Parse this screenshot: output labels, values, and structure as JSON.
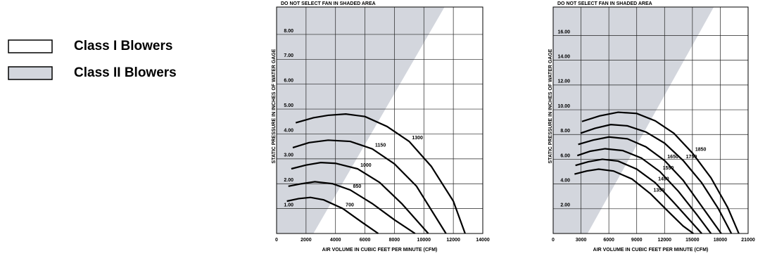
{
  "legend": [
    {
      "name": "Class I Blowers",
      "color": "#ffffff"
    },
    {
      "name": "Class II Blowers",
      "color": "#d3d6dd"
    }
  ],
  "chart_data": [
    {
      "type": "line",
      "annotation": "DO NOT SELECT FAN IN SHADED AREA",
      "y_label": "STATIC PRESSURE IN INCHES OF WATER GAGE",
      "x_label": "AIR VOLUME IN CUBIC FEET PER MINUTE (CFM)",
      "xlim": [
        0,
        14000
      ],
      "xticks": [
        0,
        2000,
        4000,
        6000,
        8000,
        10000,
        12000,
        14000
      ],
      "ylim": [
        0,
        9.1
      ],
      "yticks": [
        {
          "value": 1,
          "label": "1.00"
        },
        {
          "value": 2,
          "label": "2.00"
        },
        {
          "value": 3,
          "label": "3.00"
        },
        {
          "value": 4,
          "label": "4.00"
        },
        {
          "value": 5,
          "label": "5.00"
        },
        {
          "value": 6,
          "label": "6.00"
        },
        {
          "value": 7,
          "label": "7.00"
        },
        {
          "value": 8,
          "label": "8.00"
        }
      ],
      "grid": true,
      "shade_color": "#d3d6dd",
      "shaded_boundary": {
        "x": [
          2500,
          11400
        ],
        "y": [
          0,
          9.1
        ]
      },
      "series": [
        {
          "name": "1300",
          "color": "#000000",
          "x": [
            1300,
            2500,
            3500,
            4700,
            6000,
            7500,
            9000,
            10500,
            12000,
            12800
          ],
          "values": [
            4.45,
            4.65,
            4.75,
            4.8,
            4.7,
            4.3,
            3.7,
            2.7,
            1.3,
            0
          ]
        },
        {
          "name": "1150",
          "color": "#000000",
          "x": [
            1100,
            2200,
            3500,
            5000,
            6500,
            8000,
            9500,
            11500
          ],
          "values": [
            3.45,
            3.65,
            3.75,
            3.7,
            3.4,
            2.8,
            1.9,
            0
          ]
        },
        {
          "name": "1000",
          "color": "#000000",
          "x": [
            1000,
            2000,
            3000,
            4000,
            5500,
            7000,
            8500,
            10300
          ],
          "values": [
            2.6,
            2.75,
            2.85,
            2.82,
            2.6,
            2.05,
            1.2,
            0
          ]
        },
        {
          "name": "850",
          "color": "#000000",
          "x": [
            800,
            1700,
            2600,
            3800,
            5000,
            6500,
            8000,
            9400
          ],
          "values": [
            1.9,
            2.0,
            2.08,
            2.0,
            1.75,
            1.2,
            0.55,
            0
          ]
        },
        {
          "name": "700",
          "color": "#000000",
          "x": [
            700,
            1500,
            2300,
            3200,
            4500,
            5800,
            6900
          ],
          "values": [
            1.3,
            1.4,
            1.45,
            1.35,
            1.0,
            0.45,
            0
          ]
        }
      ]
    },
    {
      "type": "line",
      "annotation": "DO NOT SELECT FAN IN SHADED AREA",
      "y_label": "STATIC PRESSURE IN INCHES OF WATER GAGE",
      "x_label": "AIR VOLUME IN CUBIC FEET PER MINUTE (CFM)",
      "xlim": [
        0,
        21000
      ],
      "xticks": [
        0,
        3000,
        6000,
        9000,
        12000,
        15000,
        18000,
        21000
      ],
      "ylim": [
        0,
        18.3
      ],
      "yticks": [
        {
          "value": 2,
          "label": "2.00"
        },
        {
          "value": 4,
          "label": "4.00"
        },
        {
          "value": 6,
          "label": "6.00"
        },
        {
          "value": 8,
          "label": "8.00"
        },
        {
          "value": 10,
          "label": "10.00"
        },
        {
          "value": 12,
          "label": "12.00"
        },
        {
          "value": 14,
          "label": "14.00"
        },
        {
          "value": 16,
          "label": "16.00"
        }
      ],
      "grid": true,
      "shade_color": "#d3d6dd",
      "shaded_boundary": {
        "x": [
          3700,
          17300
        ],
        "y": [
          0,
          18.3
        ]
      },
      "series": [
        {
          "name": "1850",
          "color": "#000000",
          "x": [
            3100,
            5000,
            7000,
            9000,
            11000,
            13000,
            15000,
            17000,
            18800,
            20000
          ],
          "values": [
            9.05,
            9.5,
            9.8,
            9.7,
            9.1,
            8.1,
            6.5,
            4.5,
            2.1,
            0
          ]
        },
        {
          "name": "1750",
          "color": "#000000",
          "x": [
            2950,
            4500,
            6200,
            8000,
            10000,
            12000,
            14000,
            16000,
            17800,
            19200
          ],
          "values": [
            8.1,
            8.5,
            8.8,
            8.7,
            8.2,
            7.3,
            5.9,
            4.1,
            2.0,
            0
          ]
        },
        {
          "name": "1650",
          "color": "#000000",
          "x": [
            2700,
            4300,
            6000,
            8000,
            10000,
            12000,
            14000,
            16000,
            18100
          ],
          "values": [
            7.2,
            7.55,
            7.8,
            7.65,
            7.0,
            5.9,
            4.3,
            2.2,
            0
          ]
        },
        {
          "name": "1550",
          "color": "#000000",
          "x": [
            2600,
            4000,
            5600,
            7500,
            9500,
            11500,
            13500,
            15500,
            17000
          ],
          "values": [
            6.3,
            6.65,
            6.85,
            6.7,
            6.1,
            5.0,
            3.4,
            1.5,
            0
          ]
        },
        {
          "name": "1450",
          "color": "#000000",
          "x": [
            2400,
            3800,
            5300,
            7000,
            9000,
            11000,
            13000,
            14800,
            16000
          ],
          "values": [
            5.5,
            5.8,
            6.0,
            5.85,
            5.2,
            4.1,
            2.5,
            1.0,
            0
          ]
        },
        {
          "name": "1350",
          "color": "#000000",
          "x": [
            2300,
            3600,
            4900,
            6500,
            8500,
            10500,
            12500,
            14000,
            15100
          ],
          "values": [
            4.8,
            5.05,
            5.2,
            5.05,
            4.4,
            3.2,
            1.7,
            0.6,
            0
          ]
        }
      ]
    }
  ]
}
